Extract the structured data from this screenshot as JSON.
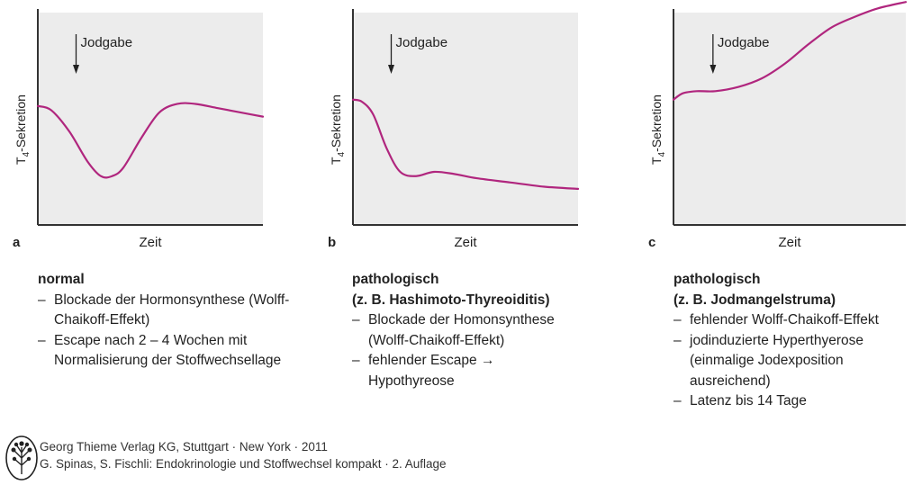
{
  "chart_data": [
    {
      "type": "line",
      "panel_label": "a",
      "ylabel_main": "T",
      "ylabel_sub": "4",
      "ylabel_rest": "-Sekretion",
      "xlabel": "Zeit",
      "annotation": "Jodgabe",
      "annotation_x": 0.17,
      "xlim": [
        0,
        1
      ],
      "ylim": [
        0,
        1
      ],
      "x": [
        0,
        0.06,
        0.14,
        0.22,
        0.28,
        0.33,
        0.38,
        0.46,
        0.54,
        0.62,
        0.7,
        0.8,
        0.9,
        1.0
      ],
      "y": [
        0.56,
        0.54,
        0.44,
        0.3,
        0.23,
        0.23,
        0.27,
        0.41,
        0.53,
        0.57,
        0.57,
        0.55,
        0.53,
        0.51
      ],
      "color": "#b0267e"
    },
    {
      "type": "line",
      "panel_label": "b",
      "ylabel_main": "T",
      "ylabel_sub": "4",
      "ylabel_rest": "-Sekretion",
      "xlabel": "Zeit",
      "annotation": "Jodgabe",
      "annotation_x": 0.17,
      "xlim": [
        0,
        1
      ],
      "ylim": [
        0,
        1
      ],
      "x": [
        0,
        0.04,
        0.09,
        0.15,
        0.21,
        0.28,
        0.36,
        0.45,
        0.55,
        0.7,
        0.85,
        1.0
      ],
      "y": [
        0.59,
        0.58,
        0.52,
        0.36,
        0.25,
        0.23,
        0.25,
        0.24,
        0.22,
        0.2,
        0.18,
        0.17
      ],
      "color": "#b0267e"
    },
    {
      "type": "line",
      "panel_label": "c",
      "ylabel_main": "T",
      "ylabel_sub": "4",
      "ylabel_rest": "-Sekretion",
      "xlabel": "Zeit",
      "annotation": "Jodgabe",
      "annotation_x": 0.17,
      "xlim": [
        0,
        1
      ],
      "ylim": [
        0,
        1
      ],
      "x": [
        0,
        0.04,
        0.1,
        0.18,
        0.28,
        0.38,
        0.48,
        0.58,
        0.68,
        0.78,
        0.88,
        1.0
      ],
      "y": [
        0.59,
        0.62,
        0.63,
        0.63,
        0.65,
        0.69,
        0.76,
        0.85,
        0.93,
        0.98,
        1.02,
        1.05
      ],
      "color": "#b0267e"
    }
  ],
  "descriptions": [
    {
      "title": [
        "normal"
      ],
      "items": [
        "Blockade der Hormonsynthese (Wolff-Chaikoff-Effekt)",
        "Escape nach 2 – 4 Wochen mit Normalisierung der Stoffwechsellage"
      ]
    },
    {
      "title": [
        "pathologisch",
        "(z. B. Hashimoto-Thyreoiditis)"
      ],
      "items": [
        "Blockade der Homonsynthese (Wolff-Chaikoff-Effekt)",
        "fehlender Escape → Hypothyreose"
      ]
    },
    {
      "title": [
        "pathologisch",
        "(z. B. Jodmangelstruma)"
      ],
      "items": [
        "fehlender Wolff-Chaikoff-Effekt",
        "jodinduzierte Hyperthyerose (einmalige Jodexposition ausreichend)",
        "Latenz bis 14 Tage"
      ]
    }
  ],
  "footer": {
    "line1": "Georg Thieme Verlag KG, Stuttgart · New York · 2011",
    "line2": "G. Spinas, S. Fischli: Endokrinologie und Stoffwechsel kompakt · 2. Auflage",
    "logo": "thieme-tree-logo"
  }
}
